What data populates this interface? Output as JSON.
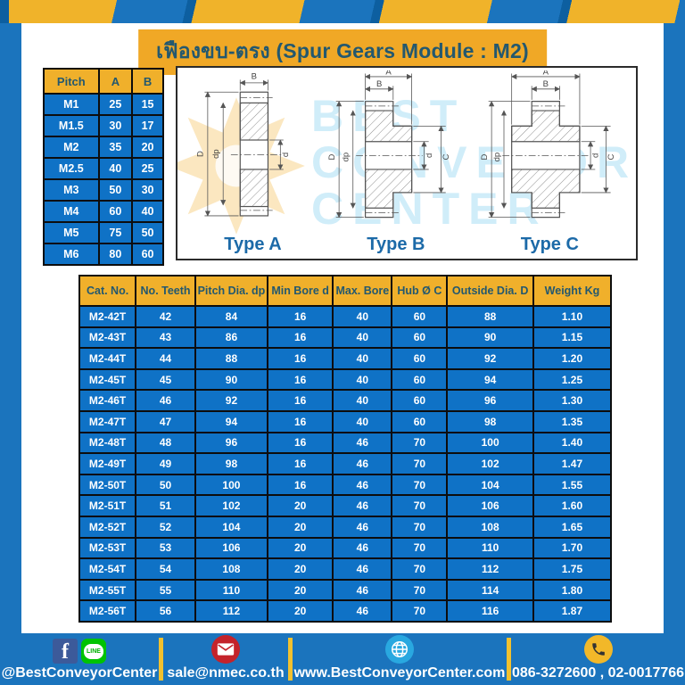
{
  "page": {
    "title": "เฟืองขบ-ตรง (Spur Gears Module : M2)"
  },
  "pitch_table": {
    "headers": [
      "Pitch",
      "A",
      "B"
    ],
    "rows": [
      [
        "M1",
        "25",
        "15"
      ],
      [
        "M1.5",
        "30",
        "17"
      ],
      [
        "M2",
        "35",
        "20"
      ],
      [
        "M2.5",
        "40",
        "25"
      ],
      [
        "M3",
        "50",
        "30"
      ],
      [
        "M4",
        "60",
        "40"
      ],
      [
        "M5",
        "75",
        "50"
      ],
      [
        "M6",
        "80",
        "60"
      ]
    ]
  },
  "drawings": {
    "watermark_lines": "BEST\nCONVEYOR\nCENTER",
    "watermark_logo": "gear-logo",
    "types": [
      {
        "label": "Type A",
        "dims": {
          "top": "B",
          "outer": "D",
          "pitch": "dp",
          "bore": "d"
        }
      },
      {
        "label": "Type B",
        "dims": {
          "top_outer": "A",
          "top_inner": "B",
          "outer": "D",
          "pitch": "dp",
          "bore": "d",
          "hub": "C"
        }
      },
      {
        "label": "Type C",
        "dims": {
          "top_outer": "A",
          "top_inner": "B",
          "outer": "D",
          "pitch": "dp",
          "bore": "d",
          "hub": "C"
        }
      }
    ]
  },
  "spec_table": {
    "headers": [
      "Cat. No.",
      "No. Teeth",
      "Pitch Dia. dp",
      "Min Bore d",
      "Max. Bore",
      "Hub Ø C",
      "Outside Dia. D",
      "Weight Kg"
    ],
    "rows": [
      [
        "M2-42T",
        "42",
        "84",
        "16",
        "40",
        "60",
        "88",
        "1.10"
      ],
      [
        "M2-43T",
        "43",
        "86",
        "16",
        "40",
        "60",
        "90",
        "1.15"
      ],
      [
        "M2-44T",
        "44",
        "88",
        "16",
        "40",
        "60",
        "92",
        "1.20"
      ],
      [
        "M2-45T",
        "45",
        "90",
        "16",
        "40",
        "60",
        "94",
        "1.25"
      ],
      [
        "M2-46T",
        "46",
        "92",
        "16",
        "40",
        "60",
        "96",
        "1.30"
      ],
      [
        "M2-47T",
        "47",
        "94",
        "16",
        "40",
        "60",
        "98",
        "1.35"
      ],
      [
        "M2-48T",
        "48",
        "96",
        "16",
        "46",
        "70",
        "100",
        "1.40"
      ],
      [
        "M2-49T",
        "49",
        "98",
        "16",
        "46",
        "70",
        "102",
        "1.47"
      ],
      [
        "M2-50T",
        "50",
        "100",
        "16",
        "46",
        "70",
        "104",
        "1.55"
      ],
      [
        "M2-51T",
        "51",
        "102",
        "20",
        "46",
        "70",
        "106",
        "1.60"
      ],
      [
        "M2-52T",
        "52",
        "104",
        "20",
        "46",
        "70",
        "108",
        "1.65"
      ],
      [
        "M2-53T",
        "53",
        "106",
        "20",
        "46",
        "70",
        "110",
        "1.70"
      ],
      [
        "M2-54T",
        "54",
        "108",
        "20",
        "46",
        "70",
        "112",
        "1.75"
      ],
      [
        "M2-55T",
        "55",
        "110",
        "20",
        "46",
        "70",
        "114",
        "1.80"
      ],
      [
        "M2-56T",
        "56",
        "112",
        "20",
        "46",
        "70",
        "116",
        "1.87"
      ]
    ]
  },
  "footer": {
    "social_label": "@BestConveyorCenter",
    "line_icon_text": "LINE",
    "facebook_icon_text": "f",
    "email": "sale@nmec.co.th",
    "website": "www.BestConveyorCenter.com",
    "phone": "086-3272600 , 02-0017766"
  },
  "colors": {
    "frame_blue": "#1b74bd",
    "cell_blue": "#0f72c6",
    "header_yellow": "#f0b02b",
    "banner_yellow": "#f0a826",
    "navy_text": "#23586f",
    "divider_yellow": "#f2c12e"
  }
}
